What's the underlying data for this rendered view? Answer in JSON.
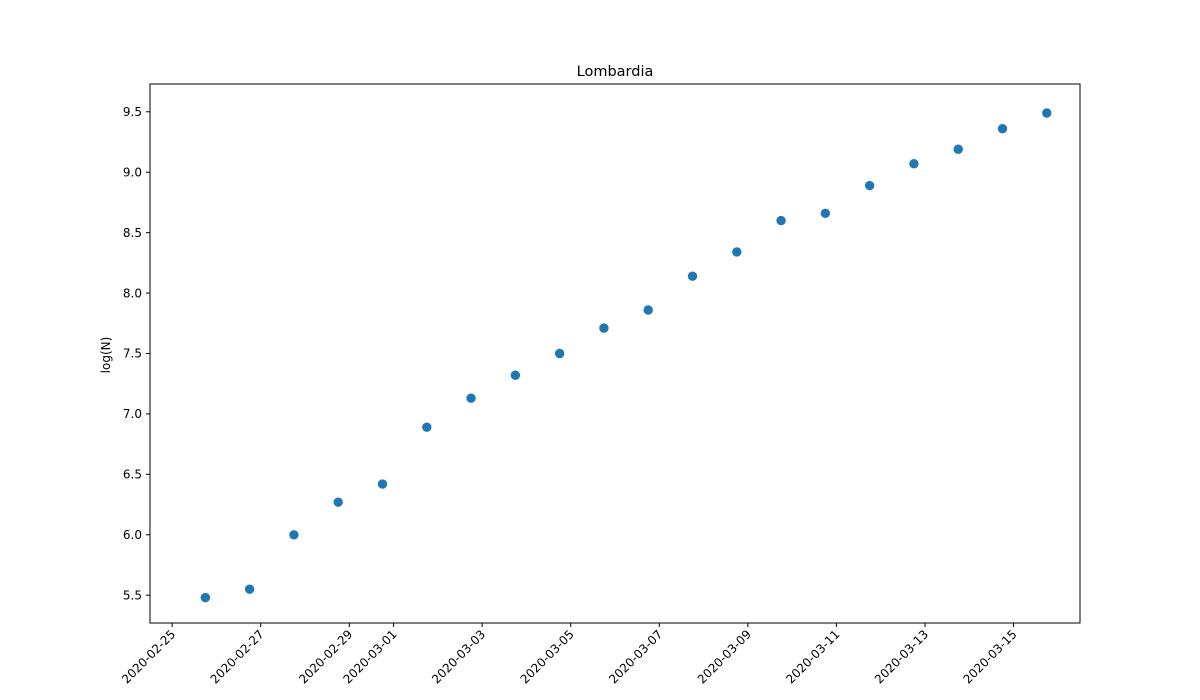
{
  "chart_data": {
    "type": "scatter",
    "title": "Lombardia",
    "xlabel": "",
    "ylabel": "log(N)",
    "x_axis_type": "date",
    "xlim": [
      "2020-02-24T12:00",
      "2020-03-16T12:00"
    ],
    "ylim": [
      5.27,
      9.73
    ],
    "x_ticks": [
      "2020-02-25",
      "2020-02-27",
      "2020-02-29",
      "2020-03-01",
      "2020-03-03",
      "2020-03-05",
      "2020-03-07",
      "2020-03-09",
      "2020-03-11",
      "2020-03-13",
      "2020-03-15"
    ],
    "y_ticks": [
      "5.5",
      "6.0",
      "6.5",
      "7.0",
      "7.5",
      "8.0",
      "8.5",
      "9.0",
      "9.5"
    ],
    "grid": false,
    "marker_color": "#1f77b4",
    "x": [
      "2020-02-25T18:00",
      "2020-02-26T18:00",
      "2020-02-27T18:00",
      "2020-02-28T18:00",
      "2020-02-29T18:00",
      "2020-03-01T18:00",
      "2020-03-02T18:00",
      "2020-03-03T18:00",
      "2020-03-04T18:00",
      "2020-03-05T18:00",
      "2020-03-06T18:00",
      "2020-03-07T18:00",
      "2020-03-08T18:00",
      "2020-03-09T18:00",
      "2020-03-10T18:00",
      "2020-03-11T18:00",
      "2020-03-12T18:00",
      "2020-03-13T18:00",
      "2020-03-14T18:00",
      "2020-03-15T18:00"
    ],
    "y": [
      5.48,
      5.55,
      6.0,
      6.27,
      6.42,
      6.89,
      7.13,
      7.32,
      7.5,
      7.71,
      7.86,
      8.14,
      8.34,
      8.6,
      8.66,
      8.89,
      9.07,
      9.19,
      9.36,
      9.49
    ]
  }
}
